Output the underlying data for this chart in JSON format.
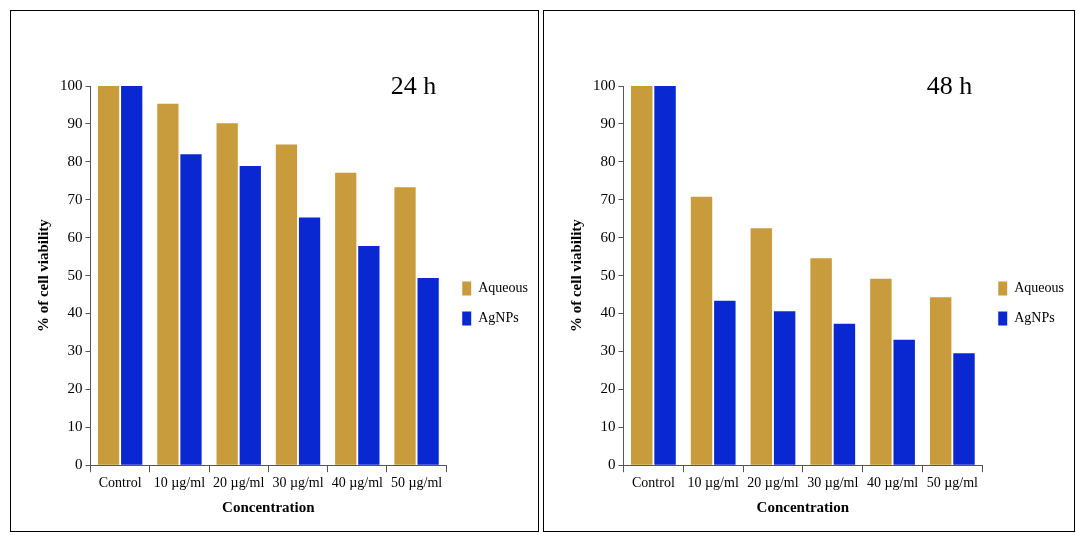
{
  "chart_data": [
    {
      "type": "bar",
      "title": "24 h",
      "xlabel": "Concentration",
      "ylabel": "% of cell viability",
      "categories": [
        "Control",
        "10 µg/ml",
        "20 µg/ml",
        "30 µg/ml",
        "40 µg/ml",
        "50 µg/ml"
      ],
      "series": [
        {
          "name": "Aqueous",
          "color": "#c89b3c",
          "values": [
            100,
            95.3,
            90.2,
            84.6,
            77.1,
            73.3
          ]
        },
        {
          "name": "AgNPs",
          "color": "#0a28d2",
          "values": [
            100,
            82,
            78.9,
            65.3,
            57.8,
            49.4
          ]
        }
      ],
      "ylim": [
        0,
        100
      ],
      "yticks": [
        0,
        10,
        20,
        30,
        40,
        50,
        60,
        70,
        80,
        90,
        100
      ],
      "grid": false,
      "legend": "right"
    },
    {
      "type": "bar",
      "title": "48 h",
      "xlabel": "Concentration",
      "ylabel": "% of cell viability",
      "categories": [
        "Control",
        "10 µg/ml",
        "20 µg/ml",
        "30 µg/ml",
        "40 µg/ml",
        "50 µg/ml"
      ],
      "series": [
        {
          "name": "Aqueous",
          "color": "#c89b3c",
          "values": [
            100,
            70.8,
            62.5,
            54.6,
            49.2,
            44.3
          ]
        },
        {
          "name": "AgNPs",
          "color": "#0a28d2",
          "values": [
            100,
            43.4,
            40.6,
            37.3,
            33.1,
            29.5
          ]
        }
      ],
      "ylim": [
        0,
        100
      ],
      "yticks": [
        0,
        10,
        20,
        30,
        40,
        50,
        60,
        70,
        80,
        90,
        100
      ],
      "grid": false,
      "legend": "right"
    }
  ]
}
